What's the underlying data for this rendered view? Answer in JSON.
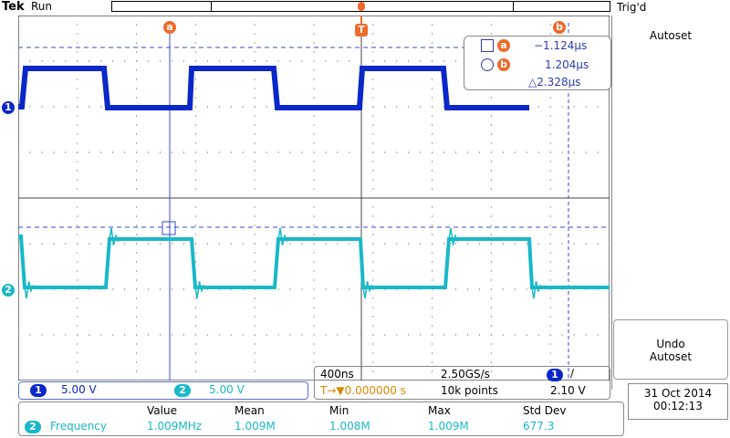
{
  "header": {
    "brand": "Tek",
    "status": "Run",
    "trigger_status": "Trig'd"
  },
  "softkeys": {
    "autoset": "Autoset",
    "undo_line1": "Undo",
    "undo_line2": "Autoset"
  },
  "markers": {
    "a": "a",
    "b": "b",
    "trigger": "T"
  },
  "channel_markers": {
    "ch1": "1",
    "ch2": "2"
  },
  "cursor_readout": {
    "a_value": "−1.124μs",
    "b_value": "1.204μs",
    "delta_value": "△2.328μs"
  },
  "channel_bar": {
    "ch1_num": "1",
    "ch1_scale": "5.00 V",
    "ch2_num": "2",
    "ch2_scale": "5.00 V"
  },
  "horizontal": {
    "timebase": "400ns",
    "sample_rate": "2.50GS/s",
    "trigger_source": "1",
    "trigger_slope": "∕",
    "trigger_position": "T→▼0.000000 s",
    "record_length": "10k points",
    "trigger_level": "2.10 V"
  },
  "datetime": {
    "date": "31 Oct  2014",
    "time": "00:12:13"
  },
  "measurement": {
    "headers": [
      "Value",
      "Mean",
      "Min",
      "Max",
      "Std Dev"
    ],
    "channel": "2",
    "name": "Frequency",
    "values": [
      "1.009MHz",
      "1.009M",
      "1.008M",
      "1.009M",
      "677.3"
    ]
  },
  "colors": {
    "ch1": "#0a28c8",
    "ch2": "#18b8c8",
    "marker": "#ee6a2a",
    "cursor": "#3a4ad0"
  }
}
